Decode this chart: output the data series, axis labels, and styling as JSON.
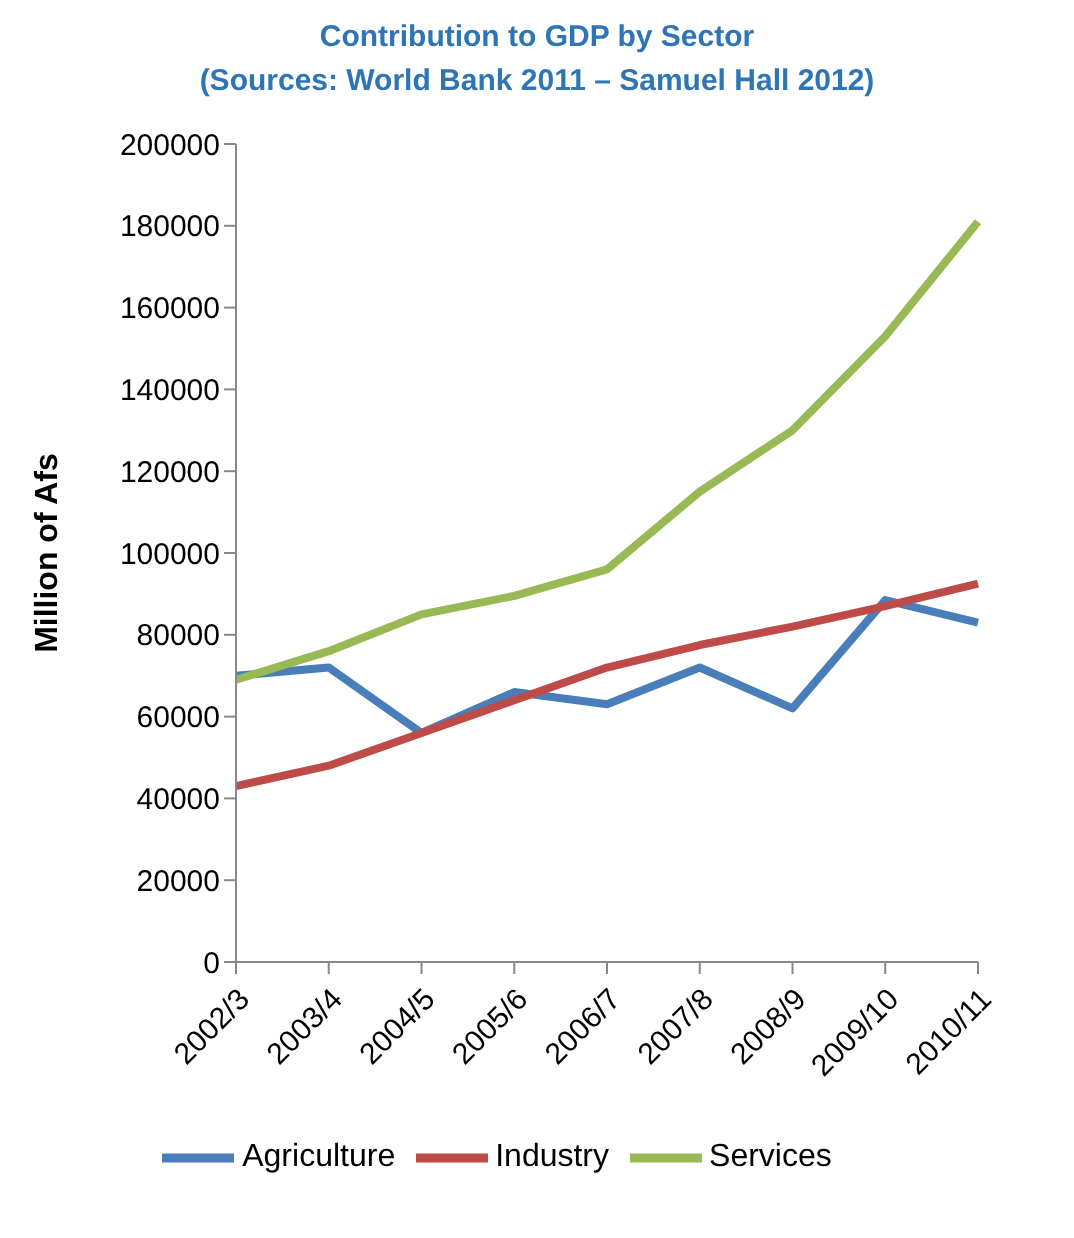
{
  "chart_data": {
    "type": "line",
    "title": "Contribution to GDP by Sector",
    "subtitle": "(Sources: World Bank 2011 – Samuel Hall 2012)",
    "ylabel": "Million of Afs",
    "categories": [
      "2002/3",
      "2003/4",
      "2004/5",
      "2005/6",
      "2006/7",
      "2007/8",
      "2008/9",
      "2009/10",
      "2010/11"
    ],
    "series": [
      {
        "name": "Agriculture",
        "color": "#4a7ebb",
        "values": [
          70000,
          72000,
          56000,
          66000,
          63000,
          72000,
          62000,
          88500,
          83000
        ]
      },
      {
        "name": "Industry",
        "color": "#be4b48",
        "values": [
          43000,
          48000,
          56000,
          64000,
          72000,
          77500,
          82000,
          87000,
          92500
        ]
      },
      {
        "name": "Services",
        "color": "#98b954",
        "values": [
          69000,
          76000,
          85000,
          89500,
          96000,
          115000,
          130000,
          153000,
          181000
        ]
      }
    ],
    "ylim": [
      0,
      200000
    ],
    "yticks": [
      0,
      20000,
      40000,
      60000,
      80000,
      100000,
      120000,
      140000,
      160000,
      180000,
      200000
    ],
    "grid": false,
    "legend": "bottom",
    "marker": "none",
    "line_style": "solid"
  }
}
